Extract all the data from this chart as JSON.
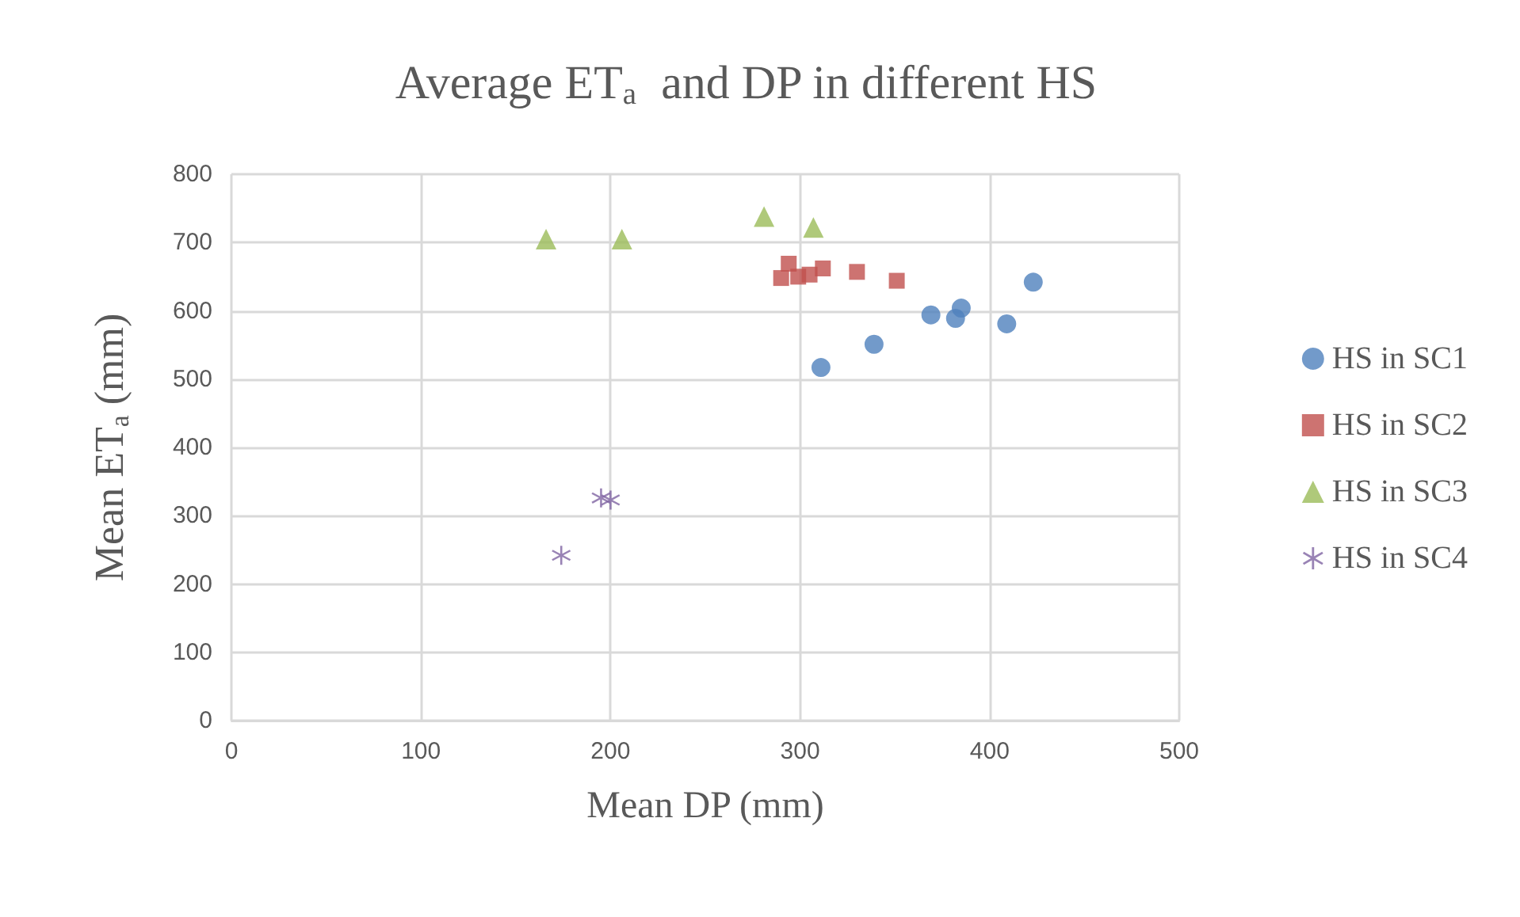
{
  "chart_data": {
    "type": "scatter",
    "title": "Average ET$_{a}$  and DP in different HS",
    "xlabel": "Mean DP (mm)",
    "ylabel": "Mean ET$_{a}$ (mm)",
    "xlim": [
      0,
      500
    ],
    "xticks": [
      0,
      100,
      200,
      300,
      400,
      500
    ],
    "ylim": [
      0,
      800
    ],
    "yticks": [
      0,
      100,
      200,
      300,
      400,
      500,
      600,
      700,
      800
    ],
    "grid": true,
    "legend": "right",
    "series": [
      {
        "name": "HS in SC1",
        "color": "#4f81bd",
        "marker": "circle",
        "x": [
          423,
          369,
          382,
          385,
          409,
          339,
          311
        ],
        "values": [
          642,
          594,
          589,
          604,
          581,
          551,
          517
        ]
      },
      {
        "name": "HS in SC2",
        "color": "#c0504d",
        "marker": "square",
        "x": [
          290,
          294,
          299,
          305,
          312,
          330,
          351
        ],
        "values": [
          648,
          669,
          650,
          653,
          662,
          657,
          644
        ]
      },
      {
        "name": "HS in SC3",
        "color": "#9bbb59",
        "marker": "triangle",
        "x": [
          166,
          206,
          281,
          307
        ],
        "values": [
          705,
          705,
          738,
          722
        ]
      },
      {
        "name": "HS in SC4",
        "color": "#8064a2",
        "marker": "star",
        "x": [
          195,
          200,
          174
        ],
        "values": [
          326,
          323,
          242
        ]
      }
    ]
  }
}
